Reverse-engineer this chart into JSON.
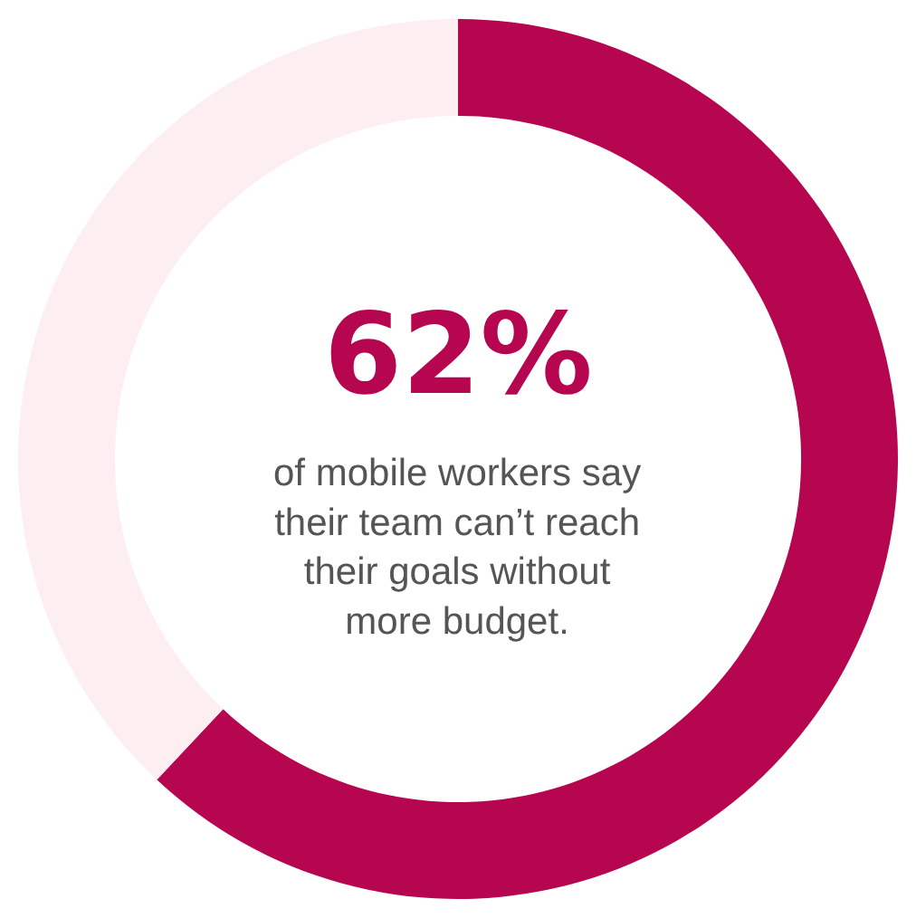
{
  "chart_data": {
    "type": "donut",
    "categories": [
      null,
      null
    ],
    "values": [
      62,
      38
    ],
    "colors": [
      "#b5064f",
      "#fdeef2"
    ],
    "annotations": [
      "62%",
      "of mobile workers say\ntheir team can’t reach\ntheir goals without\nmore budget."
    ],
    "legend": false
  }
}
